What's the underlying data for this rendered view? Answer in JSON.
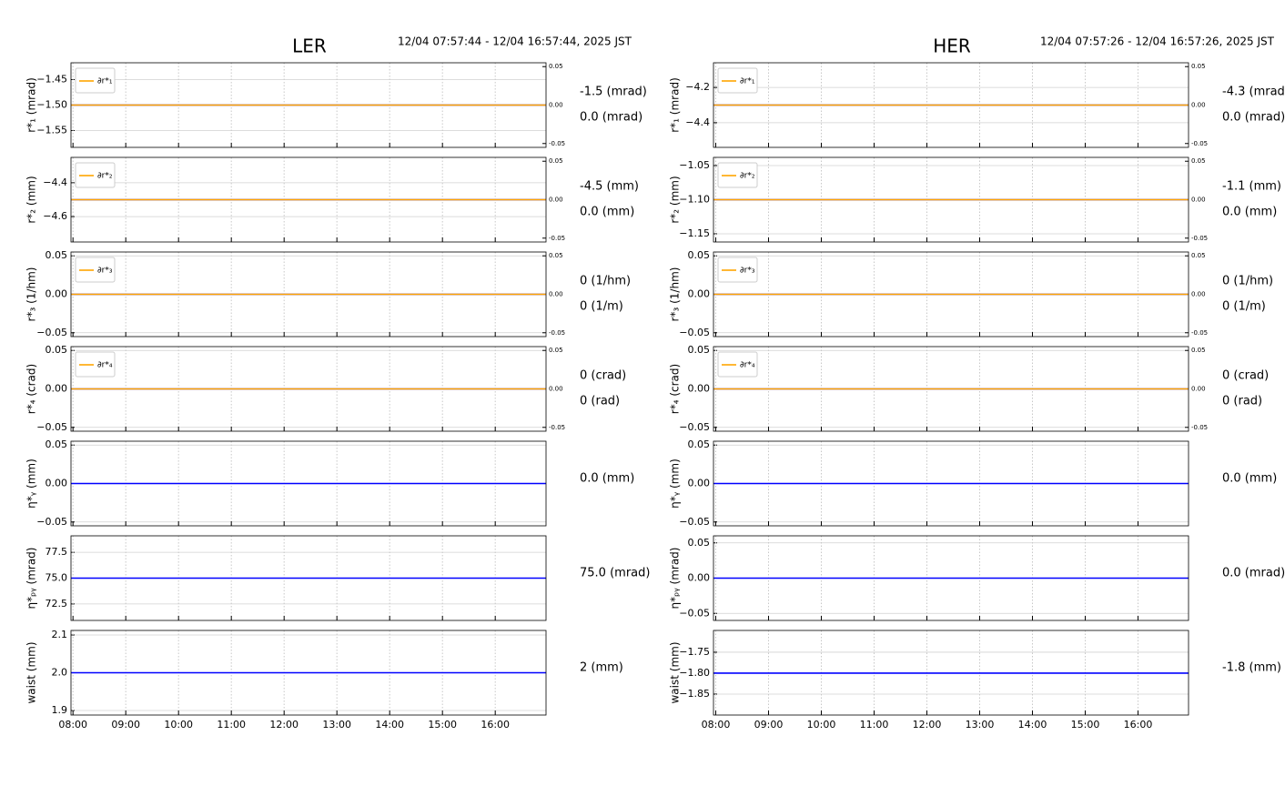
{
  "header": [
    {
      "title": "LER",
      "time_range": "12/04 07:57:44 - 12/04 16:57:44, 2025 JST"
    },
    {
      "title": "HER",
      "time_range": "12/04 07:57:26 - 12/04 16:57:26, 2025 JST"
    }
  ],
  "chart_data": [
    {
      "type": "line",
      "ylabel": "r*₁ (mrad)",
      "x": [
        7.962222,
        16.962222
      ],
      "xlim": [
        7.962222,
        16.962222
      ],
      "xticks": [
        8,
        9,
        10,
        11,
        12,
        13,
        14,
        15,
        16
      ],
      "ylim": [
        -1.583,
        -1.417
      ],
      "yticks": [
        {
          "value": -1.45,
          "label": "−1.45"
        },
        {
          "value": -1.5,
          "label": "−1.50"
        },
        {
          "value": -1.55,
          "label": "−1.55"
        }
      ],
      "y2lim": [
        -0.055,
        0.055
      ],
      "y2ticks": [
        0.05,
        {
          "value": 0,
          "label": "0.00"
        },
        -0.05
      ],
      "series": [
        {
          "color": "#0000ff",
          "values": [
            -1.5,
            -1.5
          ]
        },
        {
          "name": "∂r*₁",
          "color": "#ffa500",
          "axis": "y2",
          "values": [
            0,
            0
          ]
        }
      ],
      "readouts": [
        {
          "text": "-1.5 (mrad)",
          "color": "#0000ff"
        },
        {
          "text": "0.0 (mrad)",
          "color": "#ffa500"
        }
      ]
    },
    {
      "type": "line",
      "ylabel": "r*₂ (mm)",
      "x": [
        7.962222,
        16.962222
      ],
      "xlim": [
        7.962222,
        16.962222
      ],
      "xticks": [
        8,
        9,
        10,
        11,
        12,
        13,
        14,
        15,
        16
      ],
      "ylim": [
        -4.75,
        -4.25
      ],
      "yticks": [
        {
          "value": -4.4,
          "label": "−4.4"
        },
        {
          "value": -4.6,
          "label": "−4.6"
        }
      ],
      "y2lim": [
        -0.055,
        0.055
      ],
      "y2ticks": [
        0.05,
        {
          "value": 0,
          "label": "0.00"
        },
        -0.05
      ],
      "series": [
        {
          "color": "#0000ff",
          "values": [
            -4.5,
            -4.5
          ]
        },
        {
          "name": "∂r*₂",
          "color": "#ffa500",
          "axis": "y2",
          "values": [
            0,
            0
          ]
        }
      ],
      "readouts": [
        {
          "text": "-4.5 (mm)",
          "color": "#0000ff"
        },
        {
          "text": "0.0 (mm)",
          "color": "#ffa500"
        }
      ]
    },
    {
      "type": "line",
      "ylabel": "r*₃ (1/hm)",
      "x": [
        7.962222,
        16.962222
      ],
      "xlim": [
        7.962222,
        16.962222
      ],
      "xticks": [
        8,
        9,
        10,
        11,
        12,
        13,
        14,
        15,
        16
      ],
      "ylim": [
        -0.055,
        0.055
      ],
      "yticks": [
        0.05,
        {
          "value": 0,
          "label": "0.00"
        },
        {
          "value": -0.05,
          "label": "−0.05"
        }
      ],
      "y2lim": [
        -0.055,
        0.055
      ],
      "y2ticks": [
        0.05,
        {
          "value": 0,
          "label": "0.00"
        },
        -0.05
      ],
      "series": [
        {
          "color": "#0000ff",
          "values": [
            0,
            0
          ]
        },
        {
          "name": "∂r*₃",
          "color": "#ffa500",
          "axis": "y2",
          "values": [
            0,
            0
          ]
        }
      ],
      "readouts": [
        {
          "text": "0 (1/hm)",
          "color": "#0000ff"
        },
        {
          "text": "0 (1/m)",
          "color": "#ffa500"
        }
      ]
    },
    {
      "type": "line",
      "ylabel": "r*₄ (crad)",
      "x": [
        7.962222,
        16.962222
      ],
      "xlim": [
        7.962222,
        16.962222
      ],
      "xticks": [
        8,
        9,
        10,
        11,
        12,
        13,
        14,
        15,
        16
      ],
      "ylim": [
        -0.055,
        0.055
      ],
      "yticks": [
        0.05,
        {
          "value": 0,
          "label": "0.00"
        },
        {
          "value": -0.05,
          "label": "−0.05"
        }
      ],
      "y2lim": [
        -0.055,
        0.055
      ],
      "y2ticks": [
        0.05,
        {
          "value": 0,
          "label": "0.00"
        },
        -0.05
      ],
      "series": [
        {
          "color": "#0000ff",
          "values": [
            0,
            0
          ]
        },
        {
          "name": "∂r*₄",
          "color": "#ffa500",
          "axis": "y2",
          "values": [
            0,
            0
          ]
        }
      ],
      "readouts": [
        {
          "text": "0 (crad)",
          "color": "#0000ff"
        },
        {
          "text": "0 (rad)",
          "color": "#ffa500"
        }
      ]
    },
    {
      "type": "line",
      "ylabel": "η*ᵧ (mm)",
      "x": [
        7.962222,
        16.962222
      ],
      "xlim": [
        7.962222,
        16.962222
      ],
      "xticks": [
        8,
        9,
        10,
        11,
        12,
        13,
        14,
        15,
        16
      ],
      "ylim": [
        -0.055,
        0.055
      ],
      "yticks": [
        0.05,
        {
          "value": 0,
          "label": "0.00"
        },
        {
          "value": -0.05,
          "label": "−0.05"
        }
      ],
      "series": [
        {
          "color": "#0000ff",
          "values": [
            0,
            0
          ]
        }
      ],
      "readouts": [
        {
          "text": "0.0 (mm)",
          "color": "#0000ff"
        }
      ]
    },
    {
      "type": "line",
      "ylabel": "η*ₚᵧ (mrad)",
      "x": [
        7.962222,
        16.962222
      ],
      "xlim": [
        7.962222,
        16.962222
      ],
      "xticks": [
        8,
        9,
        10,
        11,
        12,
        13,
        14,
        15,
        16
      ],
      "ylim": [
        70.9,
        79.1
      ],
      "yticks": [
        77.5,
        {
          "value": 75,
          "label": "75.0"
        },
        72.5
      ],
      "series": [
        {
          "color": "#0000ff",
          "values": [
            75,
            75
          ]
        }
      ],
      "readouts": [
        {
          "text": "75.0 (mrad)",
          "color": "#0000ff"
        }
      ]
    },
    {
      "type": "line",
      "ylabel": "waist (mm)",
      "x": [
        7.962222,
        16.962222
      ],
      "xlim": [
        7.962222,
        16.962222
      ],
      "xticks": [
        {
          "value": 8,
          "label": "08:00"
        },
        {
          "value": 9,
          "label": "09:00"
        },
        {
          "value": 10,
          "label": "10:00"
        },
        {
          "value": 11,
          "label": "11:00"
        },
        {
          "value": 12,
          "label": "12:00"
        },
        {
          "value": 13,
          "label": "13:00"
        },
        {
          "value": 14,
          "label": "14:00"
        },
        {
          "value": 15,
          "label": "15:00"
        },
        {
          "value": 16,
          "label": "16:00"
        }
      ],
      "ylim": [
        1.888,
        2.112
      ],
      "yticks": [
        2.1,
        {
          "value": 2,
          "label": "2.0"
        },
        1.9
      ],
      "series": [
        {
          "color": "#0000ff",
          "values": [
            2,
            2
          ]
        }
      ],
      "readouts": [
        {
          "text": "2 (mm)",
          "color": "#0000ff"
        }
      ]
    },
    {
      "type": "line",
      "ylabel": "r*₁ (mrad)",
      "x": [
        7.957222,
        16.957222
      ],
      "xlim": [
        7.957222,
        16.957222
      ],
      "xticks": [
        8,
        9,
        10,
        11,
        12,
        13,
        14,
        15,
        16
      ],
      "ylim": [
        -4.54,
        -4.06
      ],
      "yticks": [
        {
          "value": -4.2,
          "label": "−4.2"
        },
        {
          "value": -4.4,
          "label": "−4.4"
        }
      ],
      "y2lim": [
        -0.055,
        0.055
      ],
      "y2ticks": [
        0.05,
        {
          "value": 0,
          "label": "0.00"
        },
        -0.05
      ],
      "series": [
        {
          "color": "#0000ff",
          "values": [
            -4.3,
            -4.3
          ]
        },
        {
          "name": "∂r*₁",
          "color": "#ffa500",
          "axis": "y2",
          "values": [
            0,
            0
          ]
        }
      ],
      "readouts": [
        {
          "text": "-4.3 (mrad)",
          "color": "#0000ff"
        },
        {
          "text": "0.0 (mrad)",
          "color": "#ffa500"
        }
      ]
    },
    {
      "type": "line",
      "ylabel": "r*₂ (mm)",
      "x": [
        7.957222,
        16.957222
      ],
      "xlim": [
        7.957222,
        16.957222
      ],
      "xticks": [
        8,
        9,
        10,
        11,
        12,
        13,
        14,
        15,
        16
      ],
      "ylim": [
        -1.162,
        -1.038
      ],
      "yticks": [
        {
          "value": -1.05,
          "label": "−1.05"
        },
        {
          "value": -1.1,
          "label": "−1.10"
        },
        {
          "value": -1.15,
          "label": "−1.15"
        }
      ],
      "y2lim": [
        -0.055,
        0.055
      ],
      "y2ticks": [
        0.05,
        {
          "value": 0,
          "label": "0.00"
        },
        -0.05
      ],
      "series": [
        {
          "color": "#0000ff",
          "values": [
            -1.1,
            -1.1
          ]
        },
        {
          "name": "∂r*₂",
          "color": "#ffa500",
          "axis": "y2",
          "values": [
            0,
            0
          ]
        }
      ],
      "readouts": [
        {
          "text": "-1.1 (mm)",
          "color": "#0000ff"
        },
        {
          "text": "0.0 (mm)",
          "color": "#ffa500"
        }
      ]
    },
    {
      "type": "line",
      "ylabel": "r*₃ (1/hm)",
      "x": [
        7.957222,
        16.957222
      ],
      "xlim": [
        7.957222,
        16.957222
      ],
      "xticks": [
        8,
        9,
        10,
        11,
        12,
        13,
        14,
        15,
        16
      ],
      "ylim": [
        -0.055,
        0.055
      ],
      "yticks": [
        0.05,
        {
          "value": 0,
          "label": "0.00"
        },
        {
          "value": -0.05,
          "label": "−0.05"
        }
      ],
      "y2lim": [
        -0.055,
        0.055
      ],
      "y2ticks": [
        0.05,
        {
          "value": 0,
          "label": "0.00"
        },
        -0.05
      ],
      "series": [
        {
          "color": "#0000ff",
          "values": [
            0,
            0
          ]
        },
        {
          "name": "∂r*₃",
          "color": "#ffa500",
          "axis": "y2",
          "values": [
            0,
            0
          ]
        }
      ],
      "readouts": [
        {
          "text": "0 (1/hm)",
          "color": "#0000ff"
        },
        {
          "text": "0 (1/m)",
          "color": "#ffa500"
        }
      ]
    },
    {
      "type": "line",
      "ylabel": "r*₄ (crad)",
      "x": [
        7.957222,
        16.957222
      ],
      "xlim": [
        7.957222,
        16.957222
      ],
      "xticks": [
        8,
        9,
        10,
        11,
        12,
        13,
        14,
        15,
        16
      ],
      "ylim": [
        -0.055,
        0.055
      ],
      "yticks": [
        0.05,
        {
          "value": 0,
          "label": "0.00"
        },
        {
          "value": -0.05,
          "label": "−0.05"
        }
      ],
      "y2lim": [
        -0.055,
        0.055
      ],
      "y2ticks": [
        0.05,
        {
          "value": 0,
          "label": "0.00"
        },
        -0.05
      ],
      "series": [
        {
          "color": "#0000ff",
          "values": [
            0,
            0
          ]
        },
        {
          "name": "∂r*₄",
          "color": "#ffa500",
          "axis": "y2",
          "values": [
            0,
            0
          ]
        }
      ],
      "readouts": [
        {
          "text": "0 (crad)",
          "color": "#0000ff"
        },
        {
          "text": "0 (rad)",
          "color": "#ffa500"
        }
      ]
    },
    {
      "type": "line",
      "ylabel": "η*ᵧ (mm)",
      "x": [
        7.957222,
        16.957222
      ],
      "xlim": [
        7.957222,
        16.957222
      ],
      "xticks": [
        8,
        9,
        10,
        11,
        12,
        13,
        14,
        15,
        16
      ],
      "ylim": [
        -0.055,
        0.055
      ],
      "yticks": [
        0.05,
        {
          "value": 0,
          "label": "0.00"
        },
        {
          "value": -0.05,
          "label": "−0.05"
        }
      ],
      "series": [
        {
          "color": "#0000ff",
          "values": [
            0,
            0
          ]
        }
      ],
      "readouts": [
        {
          "text": "0.0 (mm)",
          "color": "#0000ff"
        }
      ]
    },
    {
      "type": "line",
      "ylabel": "η*ₚᵧ (mrad)",
      "x": [
        7.957222,
        16.957222
      ],
      "xlim": [
        7.957222,
        16.957222
      ],
      "xticks": [
        8,
        9,
        10,
        11,
        12,
        13,
        14,
        15,
        16
      ],
      "ylim": [
        -0.06,
        0.06
      ],
      "yticks": [
        0.05,
        {
          "value": 0,
          "label": "0.00"
        },
        {
          "value": -0.05,
          "label": "−0.05"
        }
      ],
      "series": [
        {
          "color": "#0000ff",
          "values": [
            0,
            0
          ]
        }
      ],
      "readouts": [
        {
          "text": "0.0 (mrad)",
          "color": "#0000ff"
        }
      ]
    },
    {
      "type": "line",
      "ylabel": "waist (mm)",
      "x": [
        7.957222,
        16.957222
      ],
      "xlim": [
        7.957222,
        16.957222
      ],
      "xticks": [
        {
          "value": 8,
          "label": "08:00"
        },
        {
          "value": 9,
          "label": "09:00"
        },
        {
          "value": 10,
          "label": "10:00"
        },
        {
          "value": 11,
          "label": "11:00"
        },
        {
          "value": 12,
          "label": "12:00"
        },
        {
          "value": 13,
          "label": "13:00"
        },
        {
          "value": 14,
          "label": "14:00"
        },
        {
          "value": 15,
          "label": "15:00"
        },
        {
          "value": 16,
          "label": "16:00"
        }
      ],
      "ylim": [
        -1.9,
        -1.698
      ],
      "yticks": [
        {
          "value": -1.75,
          "label": "−1.75"
        },
        {
          "value": -1.8,
          "label": "−1.80"
        },
        {
          "value": -1.85,
          "label": "−1.85"
        }
      ],
      "series": [
        {
          "color": "#0000ff",
          "values": [
            -1.8,
            -1.8
          ]
        }
      ],
      "readouts": [
        {
          "text": "-1.8 (mm)",
          "color": "#0000ff"
        }
      ]
    }
  ]
}
